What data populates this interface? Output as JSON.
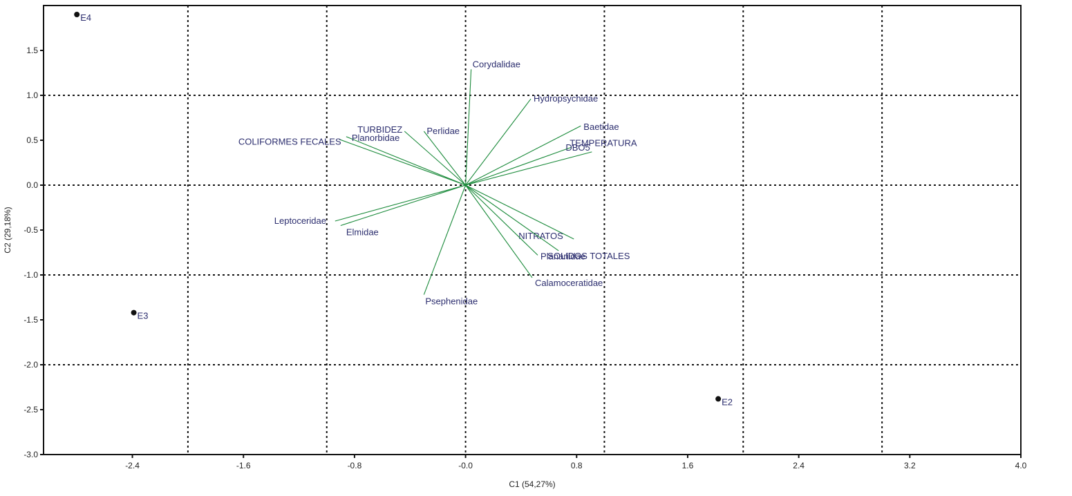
{
  "chart_data": {
    "type": "scatter",
    "subtype": "biplot",
    "xlabel": "C1 (54,27%)",
    "ylabel": "C2 (29,18%)",
    "xlim": [
      -3.04,
      4.0
    ],
    "ylim": [
      -3.0,
      2.0
    ],
    "x_ticks": [
      -2.4,
      -1.6,
      -0.8,
      0.0,
      0.8,
      1.6,
      2.4,
      3.2,
      4.0
    ],
    "x_tick_labels": [
      "-2.4",
      "-1.6",
      "-0.8",
      "-0.0",
      "0.8",
      "1.6",
      "2.4",
      "3.2",
      "4.0"
    ],
    "y_ticks": [
      1.5,
      1.0,
      0.5,
      0.0,
      -0.5,
      -1.0,
      -1.5,
      -2.0,
      -2.5,
      -3.0
    ],
    "y_tick_labels": [
      "1.5",
      "1.0",
      "0.5",
      "0.0",
      "-0.5",
      "-1.0",
      "-1.5",
      "-2.0",
      "-2.5",
      "-3.0"
    ],
    "grid_x": [
      -2.0,
      -1.0,
      0.0,
      1.0,
      2.0,
      3.0
    ],
    "grid_y": [
      1.0,
      0.0,
      -1.0,
      -2.0
    ],
    "grid": true,
    "points": [
      {
        "label": "E4",
        "x": -2.8,
        "y": 1.9
      },
      {
        "label": "E3",
        "x": -2.39,
        "y": -1.42
      },
      {
        "label": "E2",
        "x": 1.82,
        "y": -2.38
      }
    ],
    "vectors": [
      {
        "label": "Corydalidae",
        "x": 0.04,
        "y": 1.29
      },
      {
        "label": "Hydropsychidae",
        "x": 0.47,
        "y": 0.96
      },
      {
        "label": "Baetidae",
        "x": 0.83,
        "y": 0.66
      },
      {
        "label": "TEMPERATURA",
        "x": 0.76,
        "y": 0.42
      },
      {
        "label": "DBO5",
        "x": 0.91,
        "y": 0.37
      },
      {
        "label": "Perlidae",
        "x": -0.3,
        "y": 0.6
      },
      {
        "label": "TURBIDEZ",
        "x": -0.44,
        "y": 0.6
      },
      {
        "label": "Planorbidae",
        "x": -0.86,
        "y": 0.54
      },
      {
        "label": "COLIFORMES FECALES",
        "x": -0.91,
        "y": 0.51
      },
      {
        "label": "Leptoceridae",
        "x": -0.94,
        "y": -0.4
      },
      {
        "label": "Elmidae",
        "x": -0.9,
        "y": -0.45
      },
      {
        "label": "NITRATOS",
        "x": 0.78,
        "y": -0.6
      },
      {
        "label": "SOLIDOS TOTALES",
        "x": 0.67,
        "y": -0.73
      },
      {
        "label": "Planariidae",
        "x": 0.52,
        "y": -0.78
      },
      {
        "label": "Calamoceratidae",
        "x": 0.48,
        "y": -1.03
      },
      {
        "label": "Psephenidae",
        "x": -0.3,
        "y": -1.22
      }
    ],
    "colors": {
      "vector": "#1a8a3a",
      "label": "#2b2d6e",
      "point": "#111111",
      "frame": "#111111",
      "grid": "#111111"
    }
  }
}
